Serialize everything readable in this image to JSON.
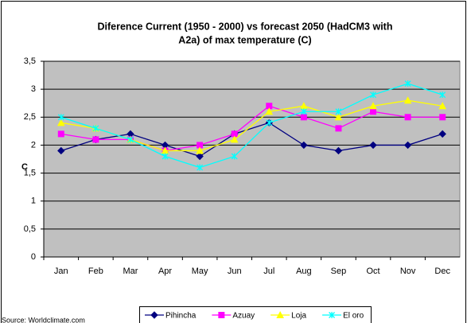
{
  "chart_data": {
    "type": "line",
    "title": [
      "Diference Current (1950 - 2000) vs forecast 2050 (HadCM3 with",
      "A2a) of max temperature (C)"
    ],
    "y_label": "C",
    "source": "Source: Worldclimate.com",
    "categories": [
      "Jan",
      "Feb",
      "Mar",
      "Apr",
      "May",
      "Jun",
      "Jul",
      "Aug",
      "Sep",
      "Oct",
      "Nov",
      "Dec"
    ],
    "series": [
      {
        "name": "Pihincha",
        "color": "#000080",
        "marker": "diamond",
        "values": [
          1.9,
          2.1,
          2.2,
          2.0,
          1.8,
          2.2,
          2.4,
          2.0,
          1.9,
          2.0,
          2.0,
          2.2
        ]
      },
      {
        "name": "Azuay",
        "color": "#ff00ff",
        "marker": "square",
        "values": [
          2.2,
          2.1,
          2.1,
          1.9,
          2.0,
          2.2,
          2.7,
          2.5,
          2.3,
          2.6,
          2.5,
          2.5
        ]
      },
      {
        "name": "Loja",
        "color": "#ffff00",
        "marker": "triangle",
        "values": [
          2.4,
          2.3,
          2.1,
          1.9,
          1.9,
          2.1,
          2.6,
          2.7,
          2.5,
          2.7,
          2.8,
          2.7
        ]
      },
      {
        "name": "El oro",
        "color": "#00ffff",
        "marker": "x",
        "values": [
          2.5,
          2.3,
          2.1,
          1.8,
          1.6,
          1.8,
          2.4,
          2.6,
          2.6,
          2.9,
          3.1,
          2.9
        ]
      }
    ],
    "ylim": [
      0,
      3.5
    ],
    "yticks": [
      0,
      {
        "value": 0.5,
        "label": "0,5"
      },
      1,
      {
        "value": 1.5,
        "label": "1,5"
      },
      2,
      {
        "value": 2.5,
        "label": "2,5"
      },
      3,
      {
        "value": 3.5,
        "label": "3,5"
      }
    ],
    "grid": true,
    "plot_background": "#c0c0c0",
    "legend": "bottom"
  }
}
